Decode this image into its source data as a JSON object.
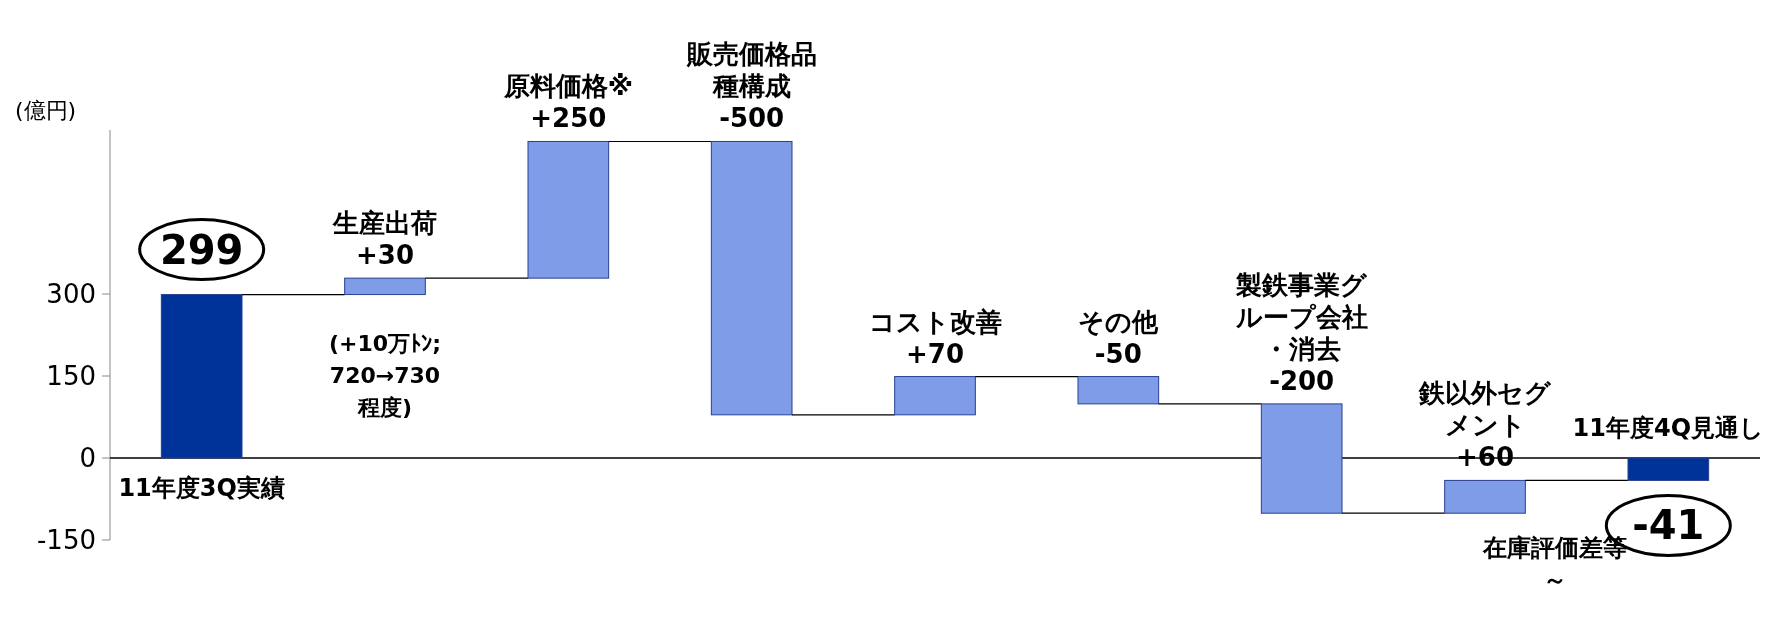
{
  "chart_data": {
    "type": "bar",
    "ylabel": "(億円)",
    "categories": [
      "11年度3Q実績",
      "生産出荷",
      "原料価格※",
      "販売価格品種構成",
      "コスト改善",
      "その他",
      "製鉄事業グループ会社・消去",
      "鉄以外セグメント",
      "11年度4Q見通し"
    ],
    "values": [
      299,
      30,
      250,
      -500,
      70,
      -50,
      -200,
      60,
      -41
    ],
    "base": [
      0,
      299,
      329,
      579,
      79,
      149,
      99,
      -101,
      0
    ],
    "colors": [
      "#003399",
      "#7f9ce8",
      "#7f9ce8",
      "#7f9ce8",
      "#7f9ce8",
      "#7f9ce8",
      "#7f9ce8",
      "#7f9ce8",
      "#003399"
    ],
    "value_labels": [
      "299",
      "+30",
      "+250",
      "-500",
      "+70",
      "-50",
      "-200",
      "+60",
      "-41"
    ],
    "ylim": [
      -150,
      600
    ],
    "yticks": [
      -150,
      0,
      150,
      300
    ],
    "annotations": [
      "(+10万ﾄﾝ;720→730程度)",
      "在庫評価差等～"
    ]
  }
}
